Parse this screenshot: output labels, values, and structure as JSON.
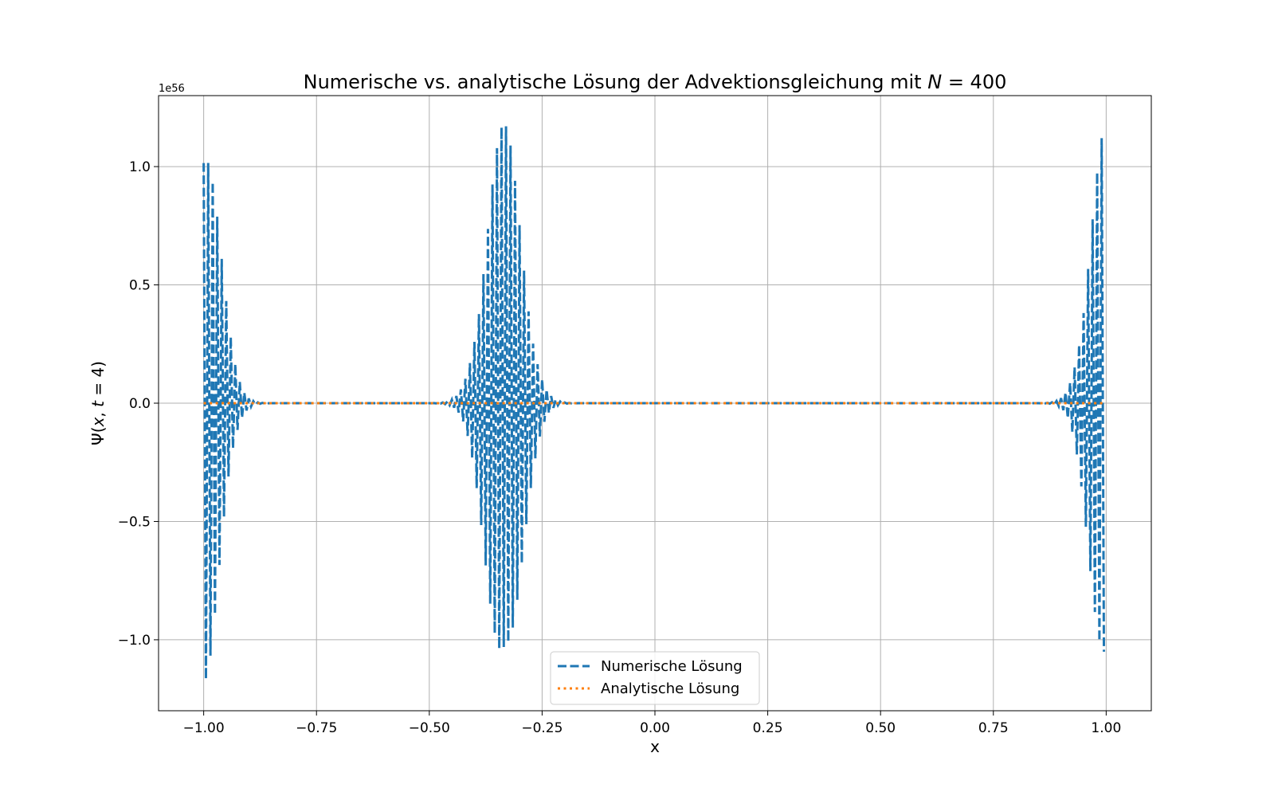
{
  "chart_data": {
    "type": "line",
    "title_prefix": "Numerische vs. analytische Lösung der Advektionsgleichung mit ",
    "title_math": "N",
    "title_suffix": " = 400",
    "xlabel": "x",
    "ylabel_prefix": "Ψ(",
    "ylabel_math_x": "x",
    "ylabel_mid": ", ",
    "ylabel_math_t": "t",
    "ylabel_suffix": " = 4)",
    "y_offset_text": "1e56",
    "xlim": [
      -1.1,
      1.1
    ],
    "ylim": [
      -1.3,
      1.3
    ],
    "y_scale_exponent": 56,
    "xticks": [
      -1.0,
      -0.75,
      -0.5,
      -0.25,
      0.0,
      0.25,
      0.5,
      0.75,
      1.0
    ],
    "xtick_labels": [
      "−1.00",
      "−0.75",
      "−0.50",
      "−0.25",
      "0.00",
      "0.25",
      "0.50",
      "0.75",
      "1.00"
    ],
    "yticks": [
      -1.0,
      -0.5,
      0.0,
      0.5,
      1.0
    ],
    "ytick_labels": [
      "−1.0",
      "−0.5",
      "0.0",
      "0.5",
      "1.0"
    ],
    "grid": true,
    "legend_position": "lower center",
    "series": [
      {
        "name": "Numerische Lösung",
        "color": "#1f77b4",
        "style": "dashed",
        "x_range": [
          -1.0,
          0.995
        ],
        "n_points": 400,
        "description_values": "oscillating wave packets (units of 1e56)",
        "packets": [
          {
            "center": -1.0,
            "width": 0.05,
            "amplitude": 1.18,
            "periodic": true
          },
          {
            "center": -0.335,
            "width": 0.055,
            "amplitude": 1.18
          },
          {
            "center": 1.0,
            "width": 0.05,
            "amplitude": 1.18,
            "periodic": true
          }
        ]
      },
      {
        "name": "Analytische Lösung",
        "color": "#ff7f0e",
        "style": "dotted",
        "x_range": [
          -1.0,
          0.995
        ],
        "value": 0.0
      }
    ]
  }
}
